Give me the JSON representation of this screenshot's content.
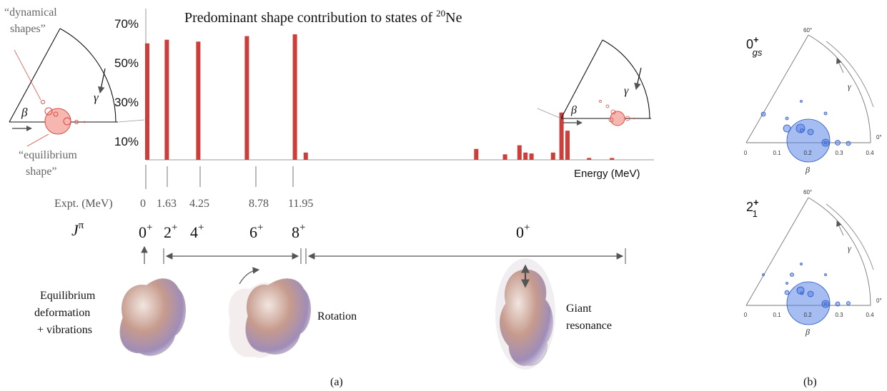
{
  "panel_a": {
    "title_main": "Predominant shape contribution to states of ",
    "title_sup": "20",
    "title_tail": "Ne",
    "x_axis_label": "Energy (MeV)",
    "y_tick_labels": [
      "70%",
      "50%",
      "30%",
      "10%"
    ],
    "expt_label": "Expt. (MeV)",
    "expt_values": [
      "0",
      "1.63",
      "4.25",
      "8.78",
      "11.95"
    ],
    "jpi_label": "J",
    "jpi_sup": "π",
    "spin_labels": [
      "0",
      "2",
      "4",
      "6",
      "8",
      "0"
    ],
    "parity": "+",
    "left_wedge": {
      "dynamical_label_line1": "“dynamical",
      "dynamical_label_line2": "shapes”",
      "equilibrium_label_line1": "“equilibrium",
      "equilibrium_label_line2": "shape”",
      "beta": "β",
      "gamma": "γ"
    },
    "right_wedge": {
      "beta": "β",
      "gamma": "γ"
    },
    "shape_captions": {
      "equilibrium": [
        "Equilibrium",
        "deformation",
        "+ vibrations"
      ],
      "rotation": "Rotation",
      "giant": [
        "Giant",
        "resonance"
      ]
    },
    "caption": "(a)"
  },
  "chart_data": {
    "type": "bar",
    "title": "Predominant shape contribution to states of 20Ne",
    "xlabel": "Energy (MeV)",
    "ylabel": "",
    "y_ticks": [
      "70%",
      "50%",
      "30%",
      "10%"
    ],
    "ylim_percent": [
      0,
      75
    ],
    "bars": [
      {
        "e": 0.0,
        "v": 64
      },
      {
        "e": 1.63,
        "v": 66
      },
      {
        "e": 4.25,
        "v": 65
      },
      {
        "e": 8.3,
        "v": 68
      },
      {
        "e": 12.3,
        "v": 69
      },
      {
        "e": 13.2,
        "v": 4
      },
      {
        "e": 27.4,
        "v": 6
      },
      {
        "e": 29.8,
        "v": 3
      },
      {
        "e": 31.0,
        "v": 8
      },
      {
        "e": 31.5,
        "v": 4
      },
      {
        "e": 32.0,
        "v": 3.5
      },
      {
        "e": 33.8,
        "v": 4
      },
      {
        "e": 34.5,
        "v": 26
      },
      {
        "e": 35.0,
        "v": 16
      },
      {
        "e": 36.8,
        "v": 1
      },
      {
        "e": 38.7,
        "v": 1
      }
    ],
    "bar_color": "#cc3e3a"
  },
  "panel_b": {
    "states": [
      {
        "label": "0",
        "sup": "+",
        "sub": "gs"
      },
      {
        "label": "2",
        "sup": "+",
        "sub": "1"
      }
    ],
    "x_ticks": [
      "0",
      "0.1",
      "0.2",
      "0.3",
      "0.4"
    ],
    "angle_60": "60°",
    "angle_0": "0°",
    "beta": "β",
    "gamma": "γ",
    "caption": "(b)",
    "bubble_color": "#3d6fd9"
  }
}
